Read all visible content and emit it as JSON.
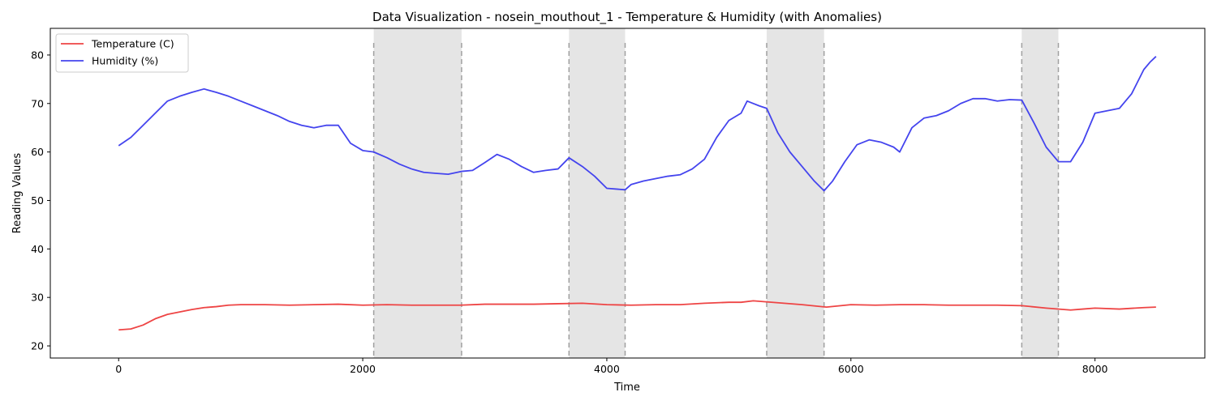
{
  "chart_data": {
    "type": "line",
    "title": "Data Visualization - nosein_mouthout_1 - Temperature & Humidity (with Anomalies)",
    "xlabel": "Time",
    "ylabel": "Reading Values",
    "xlim": [
      -560,
      8900
    ],
    "ylim": [
      17.5,
      85.5
    ],
    "xticks": [
      0,
      2000,
      4000,
      6000,
      8000
    ],
    "yticks": [
      20,
      30,
      40,
      50,
      60,
      70,
      80
    ],
    "grid": false,
    "legend_position": "top-left",
    "anomaly_regions": [
      [
        2090,
        2810
      ],
      [
        3690,
        4150
      ],
      [
        5310,
        5780
      ],
      [
        7400,
        7700
      ]
    ],
    "anomaly_line_top": 82.5,
    "series": [
      {
        "name": "Temperature (C)",
        "color": "#ee4444",
        "points": [
          [
            0,
            23.3
          ],
          [
            100,
            23.5
          ],
          [
            200,
            24.3
          ],
          [
            300,
            25.6
          ],
          [
            400,
            26.5
          ],
          [
            500,
            27.0
          ],
          [
            600,
            27.5
          ],
          [
            700,
            27.9
          ],
          [
            800,
            28.1
          ],
          [
            900,
            28.4
          ],
          [
            1000,
            28.5
          ],
          [
            1200,
            28.5
          ],
          [
            1400,
            28.4
          ],
          [
            1600,
            28.5
          ],
          [
            1800,
            28.6
          ],
          [
            2000,
            28.4
          ],
          [
            2200,
            28.5
          ],
          [
            2400,
            28.4
          ],
          [
            2600,
            28.4
          ],
          [
            2800,
            28.4
          ],
          [
            3000,
            28.6
          ],
          [
            3200,
            28.6
          ],
          [
            3400,
            28.6
          ],
          [
            3600,
            28.7
          ],
          [
            3800,
            28.8
          ],
          [
            4000,
            28.5
          ],
          [
            4200,
            28.4
          ],
          [
            4400,
            28.5
          ],
          [
            4600,
            28.5
          ],
          [
            4800,
            28.8
          ],
          [
            5000,
            29.0
          ],
          [
            5100,
            29.0
          ],
          [
            5200,
            29.3
          ],
          [
            5400,
            28.9
          ],
          [
            5600,
            28.5
          ],
          [
            5800,
            28.0
          ],
          [
            6000,
            28.5
          ],
          [
            6200,
            28.4
          ],
          [
            6400,
            28.5
          ],
          [
            6600,
            28.5
          ],
          [
            6800,
            28.4
          ],
          [
            7000,
            28.4
          ],
          [
            7200,
            28.4
          ],
          [
            7400,
            28.3
          ],
          [
            7600,
            27.8
          ],
          [
            7800,
            27.4
          ],
          [
            7900,
            27.6
          ],
          [
            8000,
            27.8
          ],
          [
            8200,
            27.6
          ],
          [
            8400,
            27.9
          ],
          [
            8500,
            28.0
          ]
        ]
      },
      {
        "name": "Humidity (%)",
        "color": "#4444ee",
        "points": [
          [
            0,
            61.3
          ],
          [
            100,
            63.0
          ],
          [
            200,
            65.5
          ],
          [
            300,
            68.0
          ],
          [
            400,
            70.5
          ],
          [
            500,
            71.5
          ],
          [
            600,
            72.3
          ],
          [
            700,
            73.0
          ],
          [
            800,
            72.3
          ],
          [
            900,
            71.5
          ],
          [
            1000,
            70.5
          ],
          [
            1100,
            69.5
          ],
          [
            1200,
            68.5
          ],
          [
            1300,
            67.5
          ],
          [
            1400,
            66.3
          ],
          [
            1500,
            65.5
          ],
          [
            1600,
            65.0
          ],
          [
            1700,
            65.5
          ],
          [
            1800,
            65.5
          ],
          [
            1900,
            61.8
          ],
          [
            2000,
            60.3
          ],
          [
            2090,
            60.0
          ],
          [
            2200,
            58.8
          ],
          [
            2300,
            57.5
          ],
          [
            2400,
            56.5
          ],
          [
            2500,
            55.8
          ],
          [
            2600,
            55.6
          ],
          [
            2700,
            55.4
          ],
          [
            2810,
            56.0
          ],
          [
            2900,
            56.2
          ],
          [
            3000,
            57.8
          ],
          [
            3100,
            59.5
          ],
          [
            3200,
            58.5
          ],
          [
            3300,
            57.0
          ],
          [
            3400,
            55.8
          ],
          [
            3500,
            56.2
          ],
          [
            3600,
            56.5
          ],
          [
            3690,
            58.8
          ],
          [
            3800,
            57.0
          ],
          [
            3900,
            55.0
          ],
          [
            4000,
            52.5
          ],
          [
            4150,
            52.2
          ],
          [
            4200,
            53.3
          ],
          [
            4300,
            54.0
          ],
          [
            4400,
            54.5
          ],
          [
            4500,
            55.0
          ],
          [
            4600,
            55.3
          ],
          [
            4700,
            56.5
          ],
          [
            4800,
            58.5
          ],
          [
            4900,
            63.0
          ],
          [
            5000,
            66.5
          ],
          [
            5100,
            68.0
          ],
          [
            5150,
            70.5
          ],
          [
            5250,
            69.5
          ],
          [
            5310,
            69.0
          ],
          [
            5400,
            64.0
          ],
          [
            5500,
            60.0
          ],
          [
            5600,
            57.0
          ],
          [
            5700,
            54.0
          ],
          [
            5780,
            52.0
          ],
          [
            5850,
            54.0
          ],
          [
            5950,
            58.0
          ],
          [
            6050,
            61.5
          ],
          [
            6150,
            62.5
          ],
          [
            6250,
            62.0
          ],
          [
            6350,
            61.0
          ],
          [
            6400,
            60.0
          ],
          [
            6500,
            65.0
          ],
          [
            6600,
            67.0
          ],
          [
            6700,
            67.5
          ],
          [
            6800,
            68.5
          ],
          [
            6900,
            70.0
          ],
          [
            7000,
            71.0
          ],
          [
            7100,
            71.0
          ],
          [
            7200,
            70.5
          ],
          [
            7300,
            70.8
          ],
          [
            7400,
            70.7
          ],
          [
            7500,
            66.0
          ],
          [
            7600,
            61.0
          ],
          [
            7700,
            58.0
          ],
          [
            7800,
            58.0
          ],
          [
            7900,
            62.0
          ],
          [
            8000,
            68.0
          ],
          [
            8100,
            68.5
          ],
          [
            8200,
            69.0
          ],
          [
            8300,
            72.0
          ],
          [
            8400,
            77.0
          ],
          [
            8450,
            78.5
          ],
          [
            8500,
            79.7
          ]
        ]
      }
    ]
  }
}
